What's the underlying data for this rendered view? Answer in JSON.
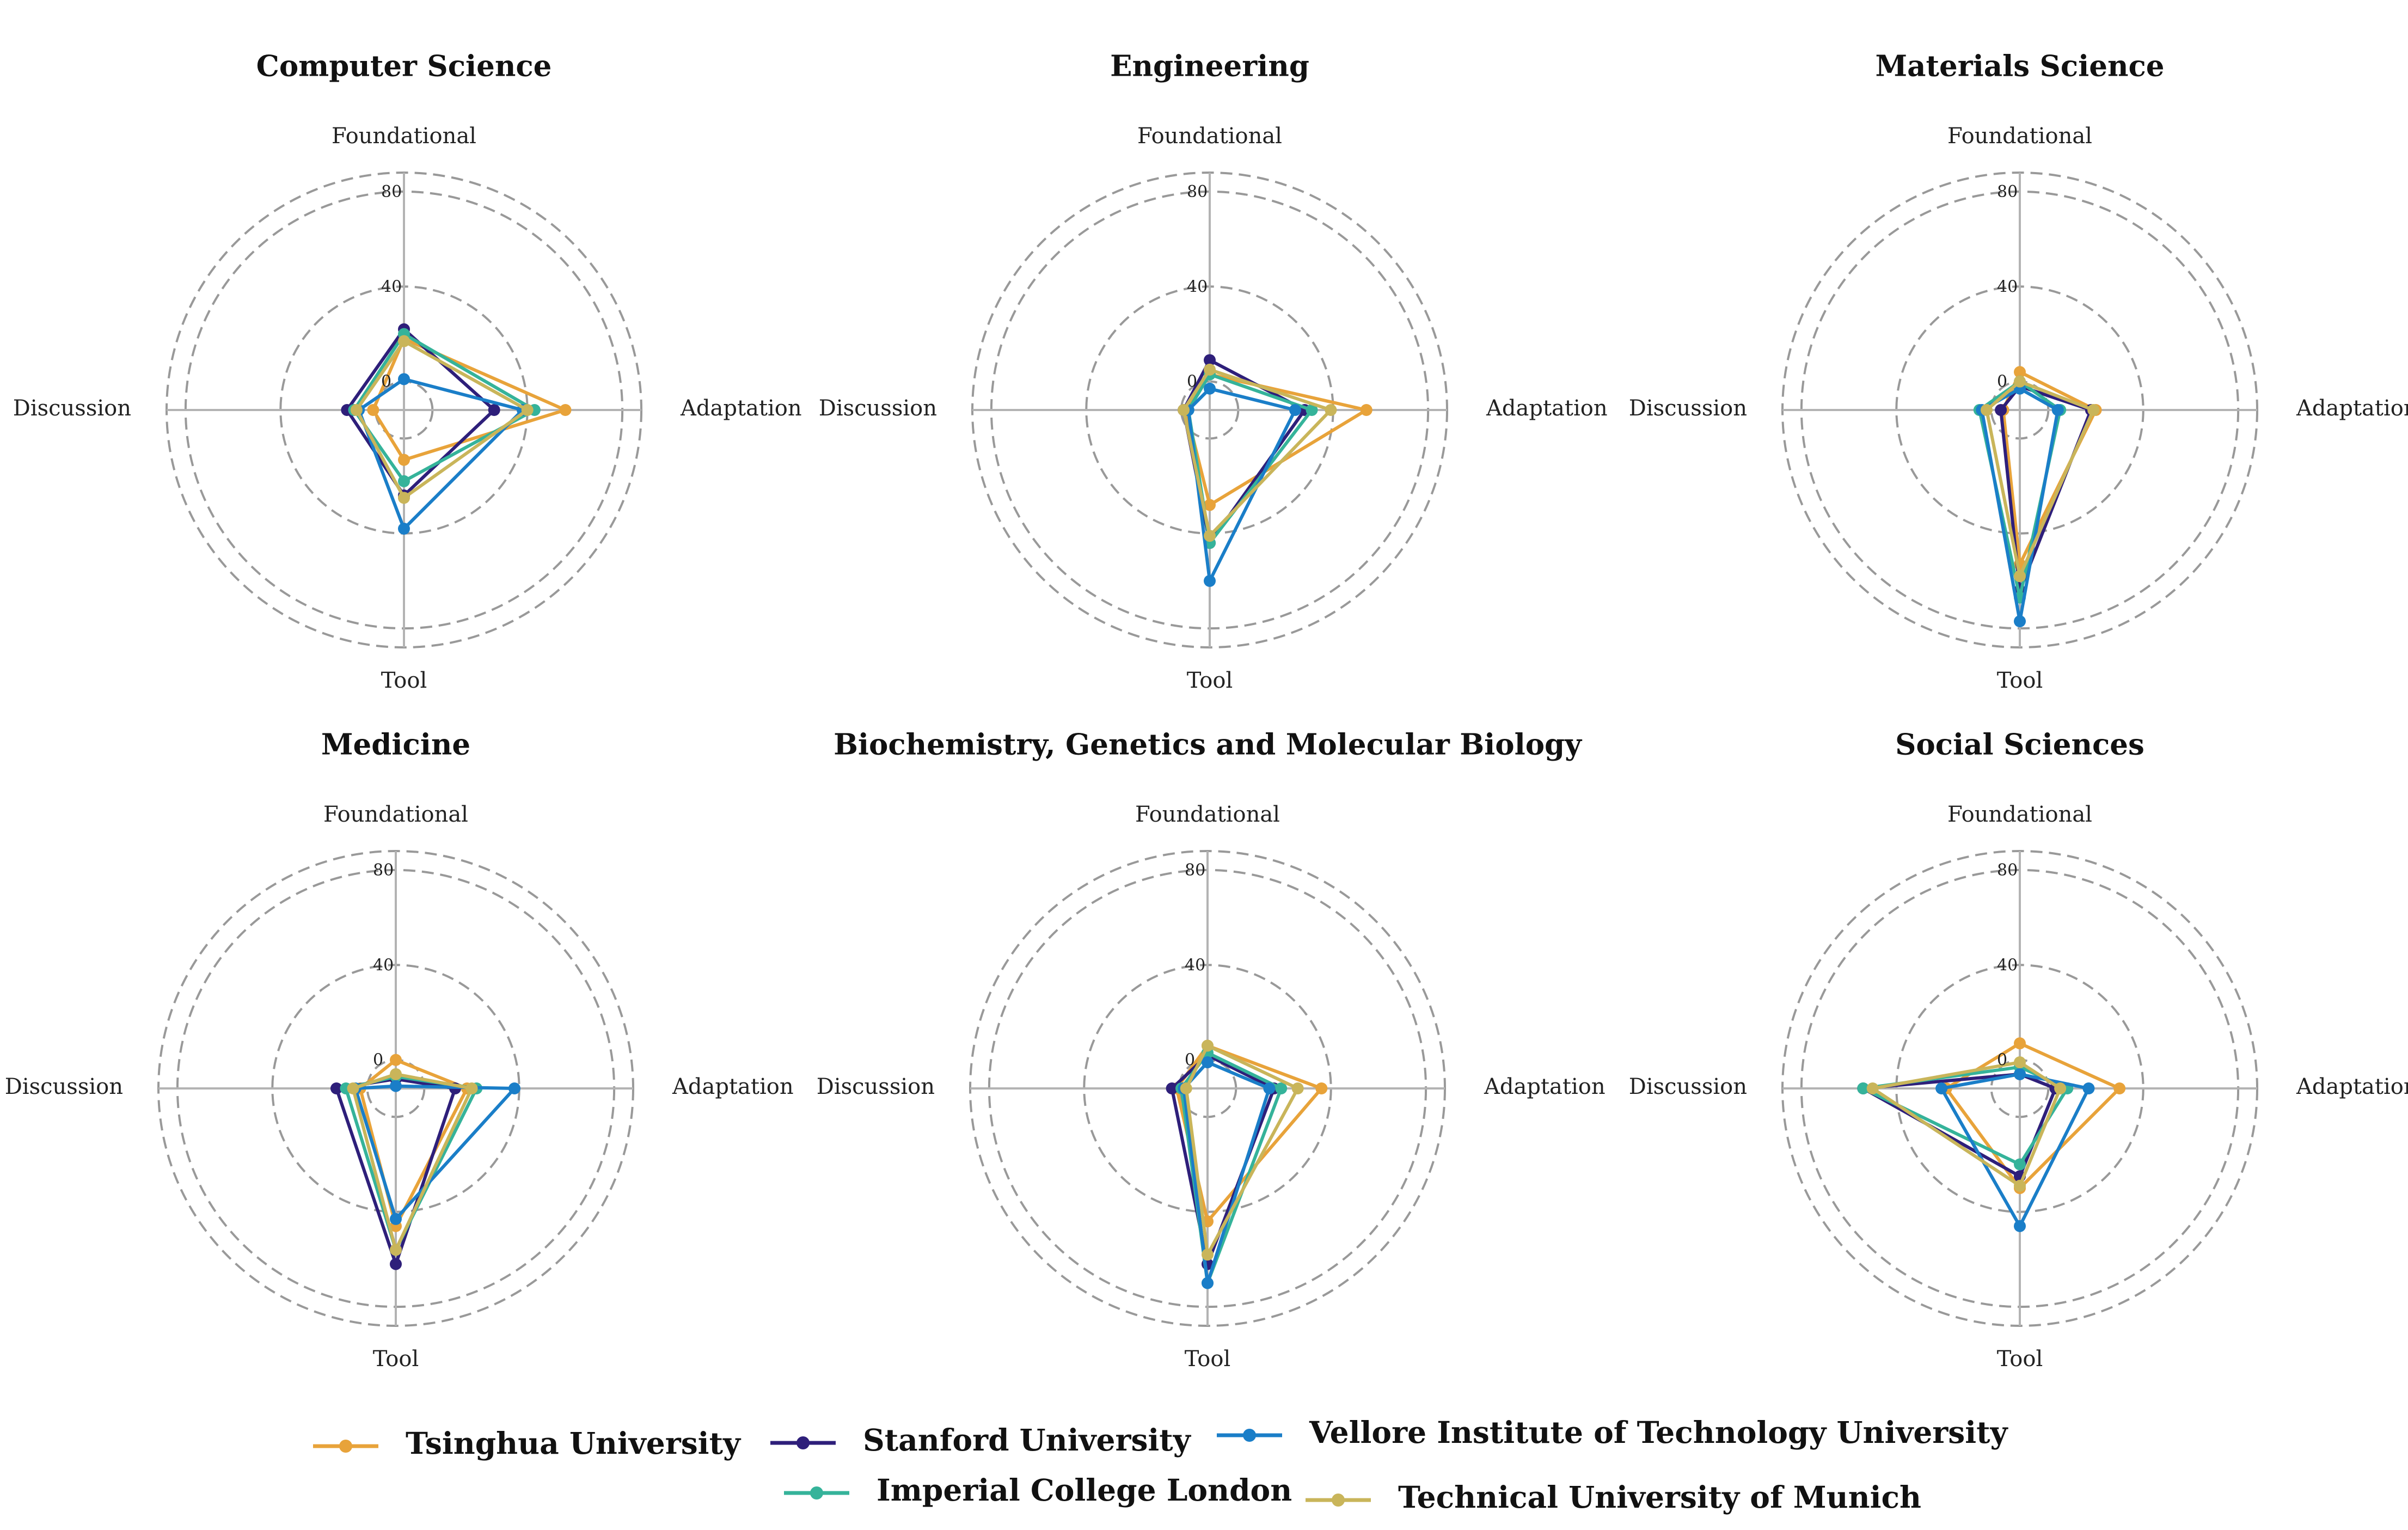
{
  "chart_data": [
    {
      "type": "radar",
      "title": "Computer Science",
      "axes": [
        "Foundational",
        "Adaptation",
        "Tool",
        "Discussion"
      ],
      "rticks": [
        0,
        40,
        80
      ],
      "rlim": [
        -12,
        88
      ],
      "grid": true,
      "series": [
        {
          "name": "Tsinghua University",
          "values": [
            18,
            56,
            9,
            1
          ]
        },
        {
          "name": "Stanford University",
          "values": [
            22,
            26,
            24,
            12
          ]
        },
        {
          "name": "Imperial College London",
          "values": [
            20,
            43,
            18,
            9
          ]
        },
        {
          "name": "Vellore Institute of Technology University",
          "values": [
            1,
            38,
            38,
            7
          ]
        },
        {
          "name": "Technical University of Munich",
          "values": [
            17,
            40,
            25,
            8
          ]
        }
      ]
    },
    {
      "type": "radar",
      "title": "Engineering",
      "axes": [
        "Foundational",
        "Adaptation",
        "Tool",
        "Discussion"
      ],
      "rticks": [
        0,
        40,
        80
      ],
      "rlim": [
        -12,
        88
      ],
      "grid": true,
      "series": [
        {
          "name": "Tsinghua University",
          "values": [
            3,
            54,
            28,
            -2
          ]
        },
        {
          "name": "Stanford University",
          "values": [
            9,
            28,
            44,
            -1
          ]
        },
        {
          "name": "Imperial College London",
          "values": [
            3,
            31,
            44,
            -3
          ]
        },
        {
          "name": "Vellore Institute of Technology University",
          "values": [
            -3,
            24,
            60,
            -3
          ]
        },
        {
          "name": "Technical University of Munich",
          "values": [
            5,
            39,
            41,
            -1
          ]
        }
      ]
    },
    {
      "type": "radar",
      "title": "Materials Science",
      "axes": [
        "Foundational",
        "Adaptation",
        "Tool",
        "Discussion"
      ],
      "rticks": [
        0,
        40,
        80
      ],
      "rlim": [
        -12,
        88
      ],
      "grid": true,
      "series": [
        {
          "name": "Tsinghua University",
          "values": [
            4,
            20,
            53,
            -5
          ]
        },
        {
          "name": "Stanford University",
          "values": [
            -2,
            18,
            64,
            -4
          ]
        },
        {
          "name": "Imperial College London",
          "values": [
            0,
            5,
            67,
            5
          ]
        },
        {
          "name": "Vellore Institute of Technology University",
          "values": [
            -3,
            4,
            77,
            4
          ]
        },
        {
          "name": "Technical University of Munich",
          "values": [
            0,
            19,
            58,
            2
          ]
        }
      ]
    },
    {
      "type": "radar",
      "title": "Medicine",
      "axes": [
        "Foundational",
        "Adaptation",
        "Tool",
        "Discussion"
      ],
      "rticks": [
        0,
        40,
        80
      ],
      "rlim": [
        -12,
        88
      ],
      "grid": true,
      "series": [
        {
          "name": "Tsinghua University",
          "values": [
            0,
            18,
            46,
            3
          ]
        },
        {
          "name": "Stanford University",
          "values": [
            -8,
            13,
            62,
            13
          ]
        },
        {
          "name": "Imperial College London",
          "values": [
            -7,
            22,
            56,
            9
          ]
        },
        {
          "name": "Vellore Institute of Technology University",
          "values": [
            -11,
            38,
            43,
            5
          ]
        },
        {
          "name": "Technical University of Munich",
          "values": [
            -6,
            20,
            56,
            6
          ]
        }
      ]
    },
    {
      "type": "radar",
      "title": "Biochemistry, Genetics and Molecular Biology",
      "axes": [
        "Foundational",
        "Adaptation",
        "Tool",
        "Discussion"
      ],
      "rticks": [
        0,
        40,
        80
      ],
      "rlim": [
        -12,
        88
      ],
      "grid": true,
      "series": [
        {
          "name": "Tsinghua University",
          "values": [
            6,
            36,
            44,
            1
          ]
        },
        {
          "name": "Stanford University",
          "values": [
            2,
            16,
            62,
            3
          ]
        },
        {
          "name": "Imperial College London",
          "values": [
            3,
            19,
            70,
            -1
          ]
        },
        {
          "name": "Vellore Institute of Technology University",
          "values": [
            -1,
            14,
            70,
            -2
          ]
        },
        {
          "name": "Technical University of Munich",
          "values": [
            6,
            26,
            58,
            -3
          ]
        }
      ]
    },
    {
      "type": "radar",
      "title": "Social Sciences",
      "axes": [
        "Foundational",
        "Adaptation",
        "Tool",
        "Discussion"
      ],
      "rticks": [
        0,
        40,
        80
      ],
      "rlim": [
        -12,
        88
      ],
      "grid": true,
      "series": [
        {
          "name": "Tsinghua University",
          "values": [
            7,
            30,
            30,
            19
          ]
        },
        {
          "name": "Stanford University",
          "values": [
            -6,
            3,
            25,
            54
          ]
        },
        {
          "name": "Imperial College London",
          "values": [
            -3,
            8,
            20,
            54
          ]
        },
        {
          "name": "Vellore Institute of Technology University",
          "values": [
            -6,
            17,
            46,
            21
          ]
        },
        {
          "name": "Technical University of Munich",
          "values": [
            -1,
            5,
            29,
            50
          ]
        }
      ]
    }
  ],
  "legend": {
    "placement": "bottom",
    "entries": [
      {
        "name": "Tsinghua University",
        "color": "#e8a33a"
      },
      {
        "name": "Stanford University",
        "color": "#2e1f7a"
      },
      {
        "name": "Vellore Institute of Technology University",
        "color": "#1a7ec8"
      },
      {
        "name": "Imperial College London",
        "color": "#35b39a"
      },
      {
        "name": "Technical University of Munich",
        "color": "#c9b55a"
      }
    ]
  },
  "colors": {
    "Tsinghua University": "#e8a33a",
    "Stanford University": "#2e1f7a",
    "Imperial College London": "#35b39a",
    "Vellore Institute of Technology University": "#1a7ec8",
    "Technical University of Munich": "#c9b55a",
    "grid": "#999999",
    "spoke": "#b3b3b3"
  }
}
